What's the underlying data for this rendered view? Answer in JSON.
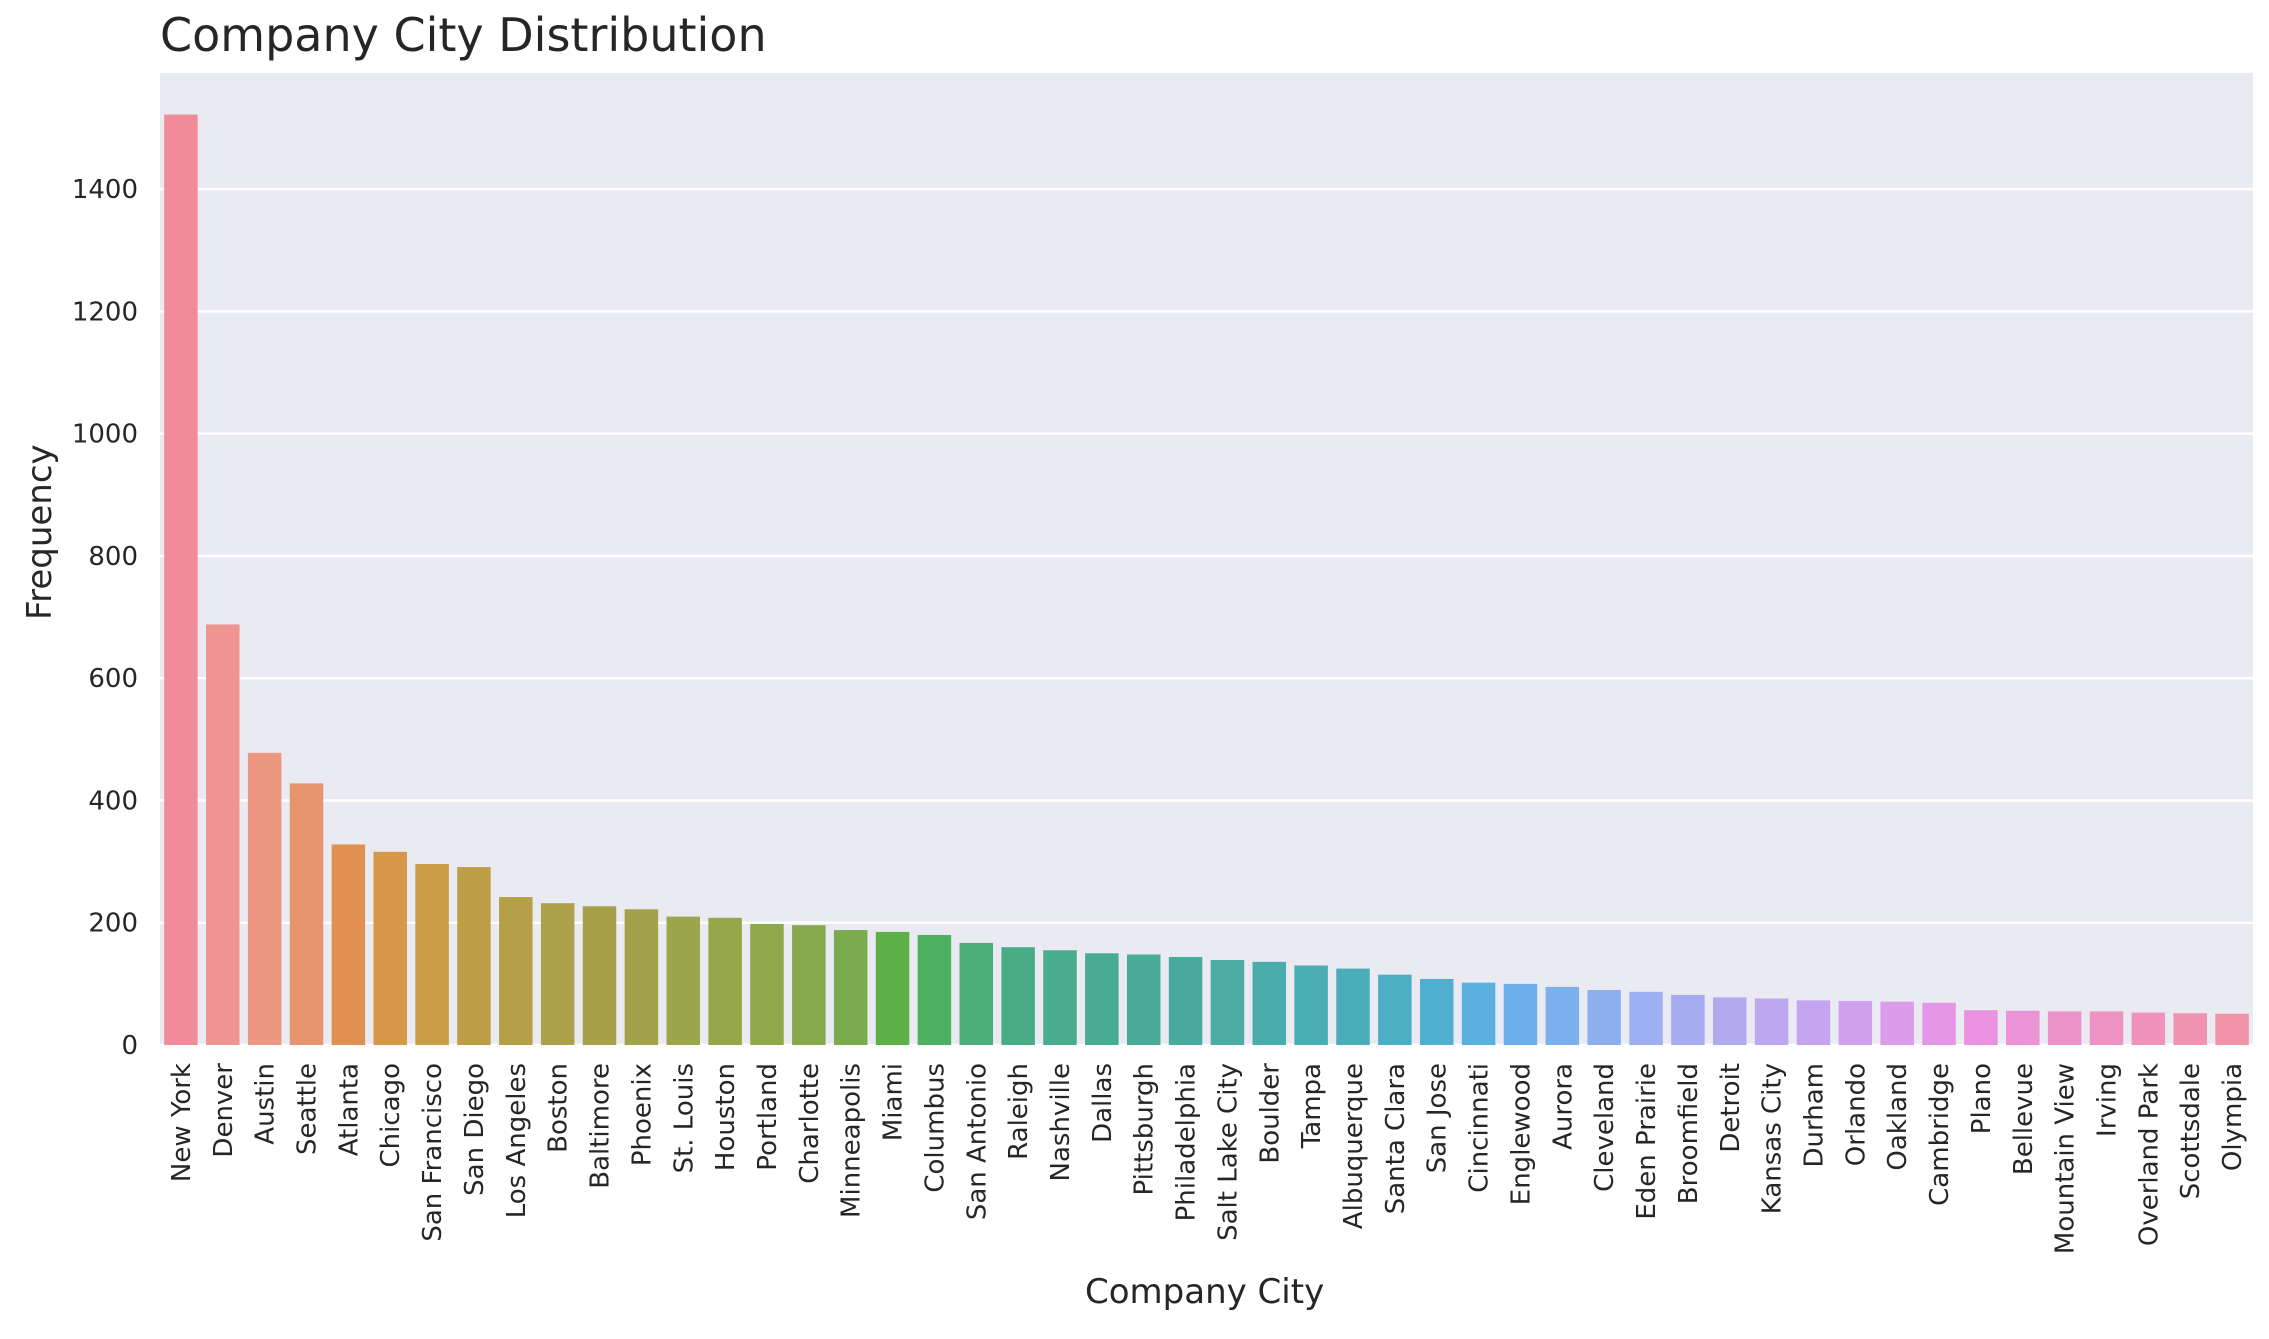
{
  "chart_data": {
    "type": "bar",
    "title": "Company City Distribution",
    "xlabel": "Company City",
    "ylabel": "Frequency",
    "ylim": [
      0,
      1590
    ],
    "yticks": [
      0,
      200,
      400,
      600,
      800,
      1000,
      1200,
      1400
    ],
    "grid": true,
    "categories": [
      "New York",
      "Denver",
      "Austin",
      "Seattle",
      "Atlanta",
      "Chicago",
      "San Francisco",
      "San Diego",
      "Los Angeles",
      "Boston",
      "Baltimore",
      "Phoenix",
      "St. Louis",
      "Houston",
      "Portland",
      "Charlotte",
      "Minneapolis",
      "Miami",
      "Columbus",
      "San Antonio",
      "Raleigh",
      "Nashville",
      "Dallas",
      "Pittsburgh",
      "Philadelphia",
      "Salt Lake City",
      "Boulder",
      "Tampa",
      "Albuquerque",
      "Santa Clara",
      "San Jose",
      "Cincinnati",
      "Englewood",
      "Aurora",
      "Cleveland",
      "Eden Prairie",
      "Broomfield",
      "Detroit",
      "Kansas City",
      "Durham",
      "Orlando",
      "Oakland",
      "Cambridge",
      "Plano",
      "Bellevue",
      "Mountain View",
      "Irving",
      "Overland Park",
      "Scottsdale",
      "Olympia"
    ],
    "values": [
      1522,
      688,
      478,
      428,
      328,
      316,
      296,
      291,
      242,
      232,
      227,
      222,
      210,
      208,
      198,
      196,
      188,
      185,
      180,
      167,
      160,
      155,
      150,
      148,
      144,
      139,
      136,
      130,
      125,
      115,
      108,
      102,
      100,
      95,
      90,
      87,
      82,
      78,
      76,
      73,
      72,
      71,
      69,
      57,
      56,
      55,
      55,
      53,
      52,
      51
    ],
    "colors": [
      "#f08c9a",
      "#ef9393",
      "#ec977f",
      "#e6946e",
      "#e29050",
      "#d6974a",
      "#c99c46",
      "#be9d47",
      "#b5a047",
      "#aca04a",
      "#a7a24a",
      "#a2a24a",
      "#9ca64a",
      "#96a74b",
      "#8ea94c",
      "#85a94d",
      "#7aab4c",
      "#5cb247",
      "#4db161",
      "#4baf78",
      "#48ad85",
      "#48ac8d",
      "#48ab93",
      "#49ab98",
      "#49ab9d",
      "#4aaca3",
      "#4aadab",
      "#4aadb2",
      "#4cadba",
      "#4daec3",
      "#50afd0",
      "#5ab1e0",
      "#6bb0ec",
      "#7bb0ee",
      "#8cb0ee",
      "#9caff0",
      "#a6acf0",
      "#b2aaf0",
      "#bca7f0",
      "#c5a5f0",
      "#d1a1ee",
      "#db9cea",
      "#e596e6",
      "#ea92df",
      "#ec92d6",
      "#ed93cc",
      "#ee93c3",
      "#ef93ba",
      "#ef93b0",
      "#f093a6"
    ],
    "background": "#eaeaf2",
    "grid_color": "#ffffff",
    "text_color": "#262626"
  }
}
